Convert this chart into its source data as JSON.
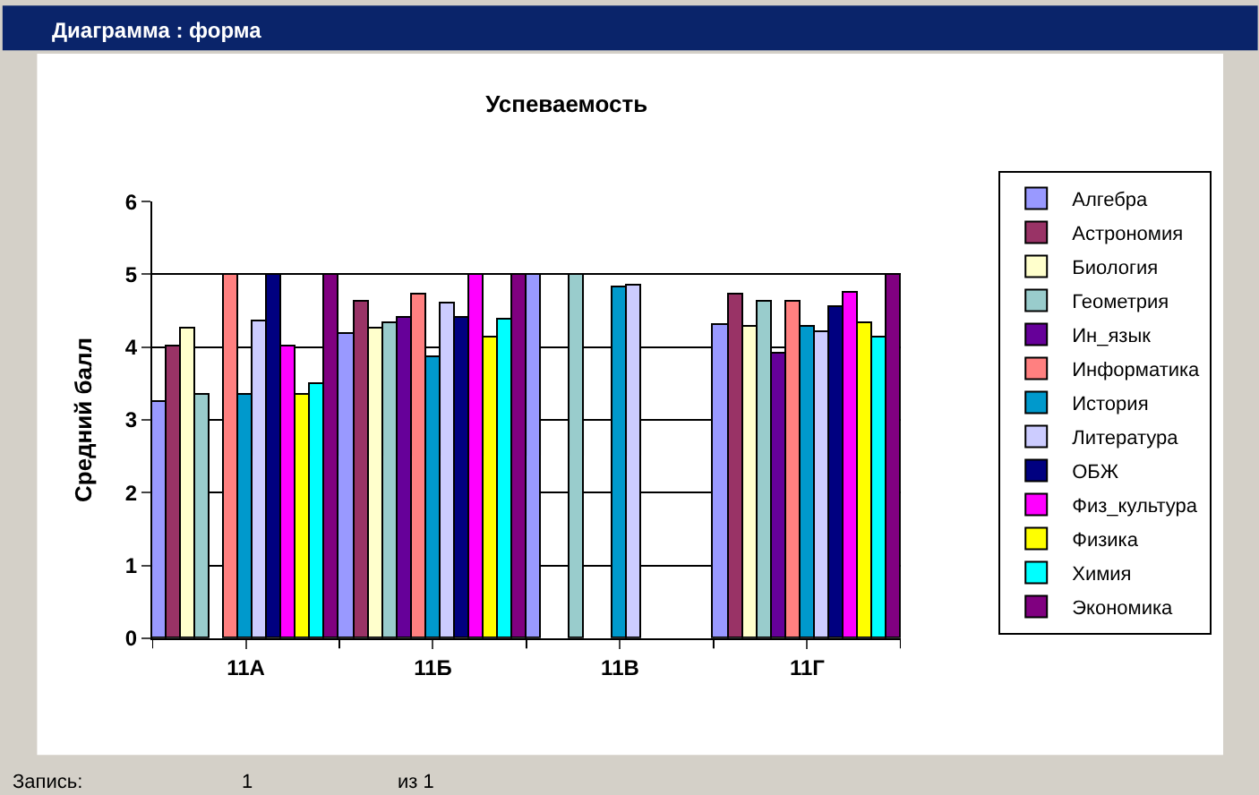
{
  "chart_data": {
    "type": "bar",
    "title": "Успеваемость",
    "ylabel": "Средний балл",
    "categories": [
      "11А",
      "11Б",
      "11В",
      "11Г"
    ],
    "series": [
      {
        "name": "Алгебра",
        "color": "#9999ff",
        "values": [
          3.25,
          4.18,
          5,
          4.29
        ]
      },
      {
        "name": "Астрономия",
        "color": "#993366",
        "values": [
          4.0,
          4.62,
          null,
          4.72
        ]
      },
      {
        "name": "Биология",
        "color": "#ffffcc",
        "values": [
          4.25,
          4.26,
          null,
          4.27
        ]
      },
      {
        "name": "Геометрия",
        "color": "#99cccc",
        "values": [
          3.34,
          4.32,
          5,
          4.61
        ]
      },
      {
        "name": "Ин_язык",
        "color": "#660099",
        "values": [
          null,
          4.4,
          null,
          3.91
        ]
      },
      {
        "name": "Информатика",
        "color": "#ff8080",
        "values": [
          5,
          4.72,
          null,
          4.61
        ]
      },
      {
        "name": "История",
        "color": "#0099cc",
        "values": [
          3.34,
          3.85,
          4.81,
          4.27
        ]
      },
      {
        "name": "Литература",
        "color": "#ccccff",
        "values": [
          4.34,
          4.6,
          4.85,
          4.21
        ]
      },
      {
        "name": "ОБЖ",
        "color": "#000080",
        "values": [
          5,
          4.4,
          null,
          4.55
        ]
      },
      {
        "name": "Физ_культура",
        "color": "#ff00ff",
        "values": [
          4.0,
          5,
          null,
          4.74
        ]
      },
      {
        "name": "Физика",
        "color": "#ffff00",
        "values": [
          3.34,
          4.12,
          null,
          4.33
        ]
      },
      {
        "name": "Химия",
        "color": "#00ffff",
        "values": [
          3.48,
          4.38,
          null,
          4.12
        ]
      },
      {
        "name": "Экономика",
        "color": "#800080",
        "values": [
          5,
          5,
          null,
          5
        ]
      }
    ],
    "ylim": [
      0,
      6
    ],
    "yticks": [
      0,
      1,
      2,
      3,
      4,
      5,
      6
    ],
    "grid": "y",
    "legend": "right",
    "annotations": [
      "Диаграмма : форма",
      "Запись:",
      "1",
      "из 1"
    ]
  }
}
